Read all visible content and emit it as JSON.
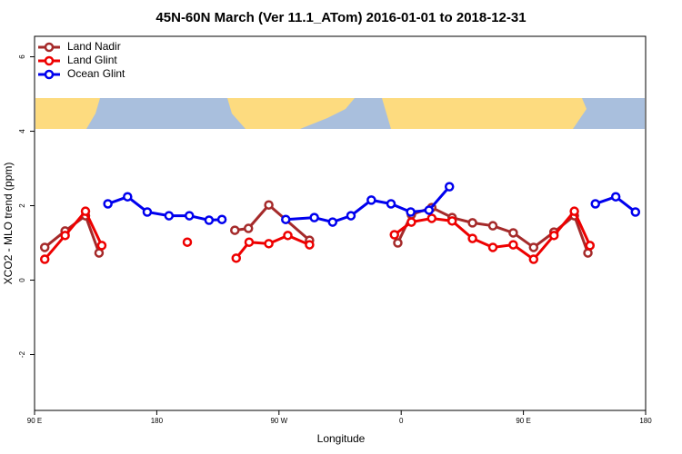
{
  "chart_data": {
    "type": "line",
    "title": "45N-60N March (Ver 11.1_ATom)   2016-01-01 to 2018-12-31",
    "x_label": "Longitude",
    "y_label": "XCO2 - MLO trend (ppm)",
    "xlim": [
      90,
      540
    ],
    "xticks": [
      {
        "value": 90,
        "label": "90 E"
      },
      180,
      {
        "value": 270,
        "label": "90 W"
      },
      {
        "value": 360,
        "label": "0"
      },
      {
        "value": 450,
        "label": "90 E"
      },
      {
        "value": 540,
        "label": "180"
      }
    ],
    "ylim": [
      -3.5,
      6.55
    ],
    "yticks": [
      -2,
      0,
      2,
      4,
      6
    ],
    "legend": "top-left",
    "series": [
      {
        "name": "Land Nadir",
        "color": "#a52a2a",
        "x": [
          97.5,
          112.5,
          127.5,
          137.5,
          null,
          237.5,
          247.5,
          262.5,
          292.5,
          null,
          357.5,
          367.5,
          382.5,
          397.5,
          412.5,
          427.5,
          442.5,
          457.5,
          472.5,
          487.5,
          497.5
        ],
        "values": [
          0.88,
          1.32,
          1.73,
          0.73,
          null,
          1.34,
          1.39,
          2.02,
          1.07,
          null,
          1.0,
          1.76,
          1.95,
          1.68,
          1.54,
          1.46,
          1.27,
          0.88,
          1.29,
          1.73,
          0.73
        ]
      },
      {
        "name": "Land Glint",
        "color": "#ee0000",
        "x": [
          97.5,
          112.5,
          127.5,
          139.5,
          null,
          202.5,
          null,
          238.5,
          248,
          262.5,
          276.5,
          292.5,
          null,
          355,
          367.5,
          382.5,
          397.5,
          412.5,
          427.5,
          442.5,
          457.5,
          472.5,
          487.5,
          499
        ],
        "values": [
          0.56,
          1.2,
          1.85,
          0.93,
          null,
          1.02,
          null,
          0.59,
          1.02,
          0.98,
          1.2,
          0.95,
          null,
          1.22,
          1.56,
          1.66,
          1.59,
          1.12,
          0.88,
          0.95,
          0.56,
          1.2,
          1.85,
          0.93
        ]
      },
      {
        "name": "Ocean Glint",
        "color": "#0000ee",
        "x": [
          144,
          158.5,
          173,
          189,
          204,
          218.5,
          228,
          null,
          275,
          296,
          309.5,
          323,
          338,
          352.5,
          367,
          380.5,
          395.5,
          null,
          503,
          518,
          532.5
        ],
        "values": [
          2.05,
          2.24,
          1.83,
          1.73,
          1.73,
          1.61,
          1.63,
          null,
          1.63,
          1.68,
          1.56,
          1.73,
          2.15,
          2.05,
          1.83,
          1.88,
          2.51,
          null,
          2.05,
          2.24,
          1.83
        ]
      }
    ]
  }
}
